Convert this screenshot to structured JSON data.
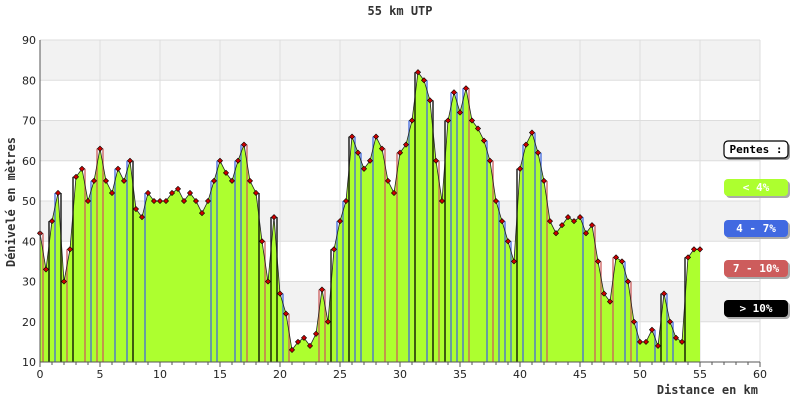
{
  "chart_data": {
    "type": "area",
    "title": "55 km UTP",
    "xlabel": "Distance en km",
    "ylabel": "Dénivelé en mètres",
    "xlim": [
      0,
      60
    ],
    "ylim": [
      10,
      90
    ],
    "x_ticks": [
      0,
      5,
      10,
      15,
      20,
      25,
      30,
      35,
      40,
      45,
      50,
      55,
      60
    ],
    "y_ticks": [
      10,
      20,
      30,
      40,
      50,
      60,
      70,
      80,
      90
    ],
    "grid": true,
    "legend_title": "Pentes :",
    "legend": [
      {
        "label": "< 4%",
        "color": "#adff2f",
        "text_color": "#ffffff"
      },
      {
        "label": "4 - 7%",
        "color": "#4169e1",
        "text_color": "#ffffff"
      },
      {
        "label": "7 - 10%",
        "color": "#cd5c5c",
        "text_color": "#ffffff"
      },
      {
        "label": "> 10%",
        "color": "#000000",
        "text_color": "#ffffff"
      }
    ],
    "colors": {
      "area": "#adff2f",
      "marker": "#cc0000",
      "outline": "#222222",
      "band": "#f2f2f2"
    },
    "x": [
      0,
      0.5,
      1,
      1.5,
      2,
      2.5,
      3,
      3.5,
      4,
      4.5,
      5,
      5.5,
      6,
      6.5,
      7,
      7.5,
      8,
      8.5,
      9,
      9.5,
      10,
      10.5,
      11,
      11.5,
      12,
      12.5,
      13,
      13.5,
      14,
      14.5,
      15,
      15.5,
      16,
      16.5,
      17,
      17.5,
      18,
      18.5,
      19,
      19.5,
      20,
      20.5,
      21,
      21.5,
      22,
      22.5,
      23,
      23.5,
      24,
      24.5,
      25,
      25.5,
      26,
      26.5,
      27,
      27.5,
      28,
      28.5,
      29,
      29.5,
      30,
      30.5,
      31,
      31.5,
      32,
      32.5,
      33,
      33.5,
      34,
      34.5,
      35,
      35.5,
      36,
      36.5,
      37,
      37.5,
      38,
      38.5,
      39,
      39.5,
      40,
      40.5,
      41,
      41.5,
      42,
      42.5,
      43,
      43.5,
      44,
      44.5,
      45,
      45.5,
      46,
      46.5,
      47,
      47.5,
      48,
      48.5,
      49,
      49.5,
      50,
      50.5,
      51,
      51.5,
      52,
      52.5,
      53,
      53.5,
      54,
      54.5,
      55
    ],
    "y": [
      42,
      33,
      45,
      52,
      30,
      38,
      56,
      58,
      50,
      55,
      63,
      55,
      52,
      58,
      55,
      60,
      48,
      46,
      52,
      50,
      50,
      50,
      52,
      53,
      50,
      52,
      50,
      47,
      50,
      55,
      60,
      57,
      55,
      60,
      64,
      55,
      52,
      40,
      30,
      46,
      27,
      22,
      13,
      15,
      16,
      14,
      17,
      28,
      20,
      38,
      45,
      50,
      66,
      62,
      58,
      60,
      66,
      63,
      55,
      52,
      62,
      64,
      70,
      82,
      80,
      75,
      60,
      50,
      70,
      77,
      72,
      78,
      70,
      68,
      65,
      60,
      50,
      45,
      40,
      35,
      58,
      64,
      67,
      62,
      55,
      45,
      42,
      44,
      46,
      45,
      46,
      42,
      44,
      35,
      27,
      25,
      36,
      35,
      30,
      20,
      15,
      15,
      18,
      14,
      27,
      20,
      16,
      15,
      36,
      38,
      38
    ]
  }
}
